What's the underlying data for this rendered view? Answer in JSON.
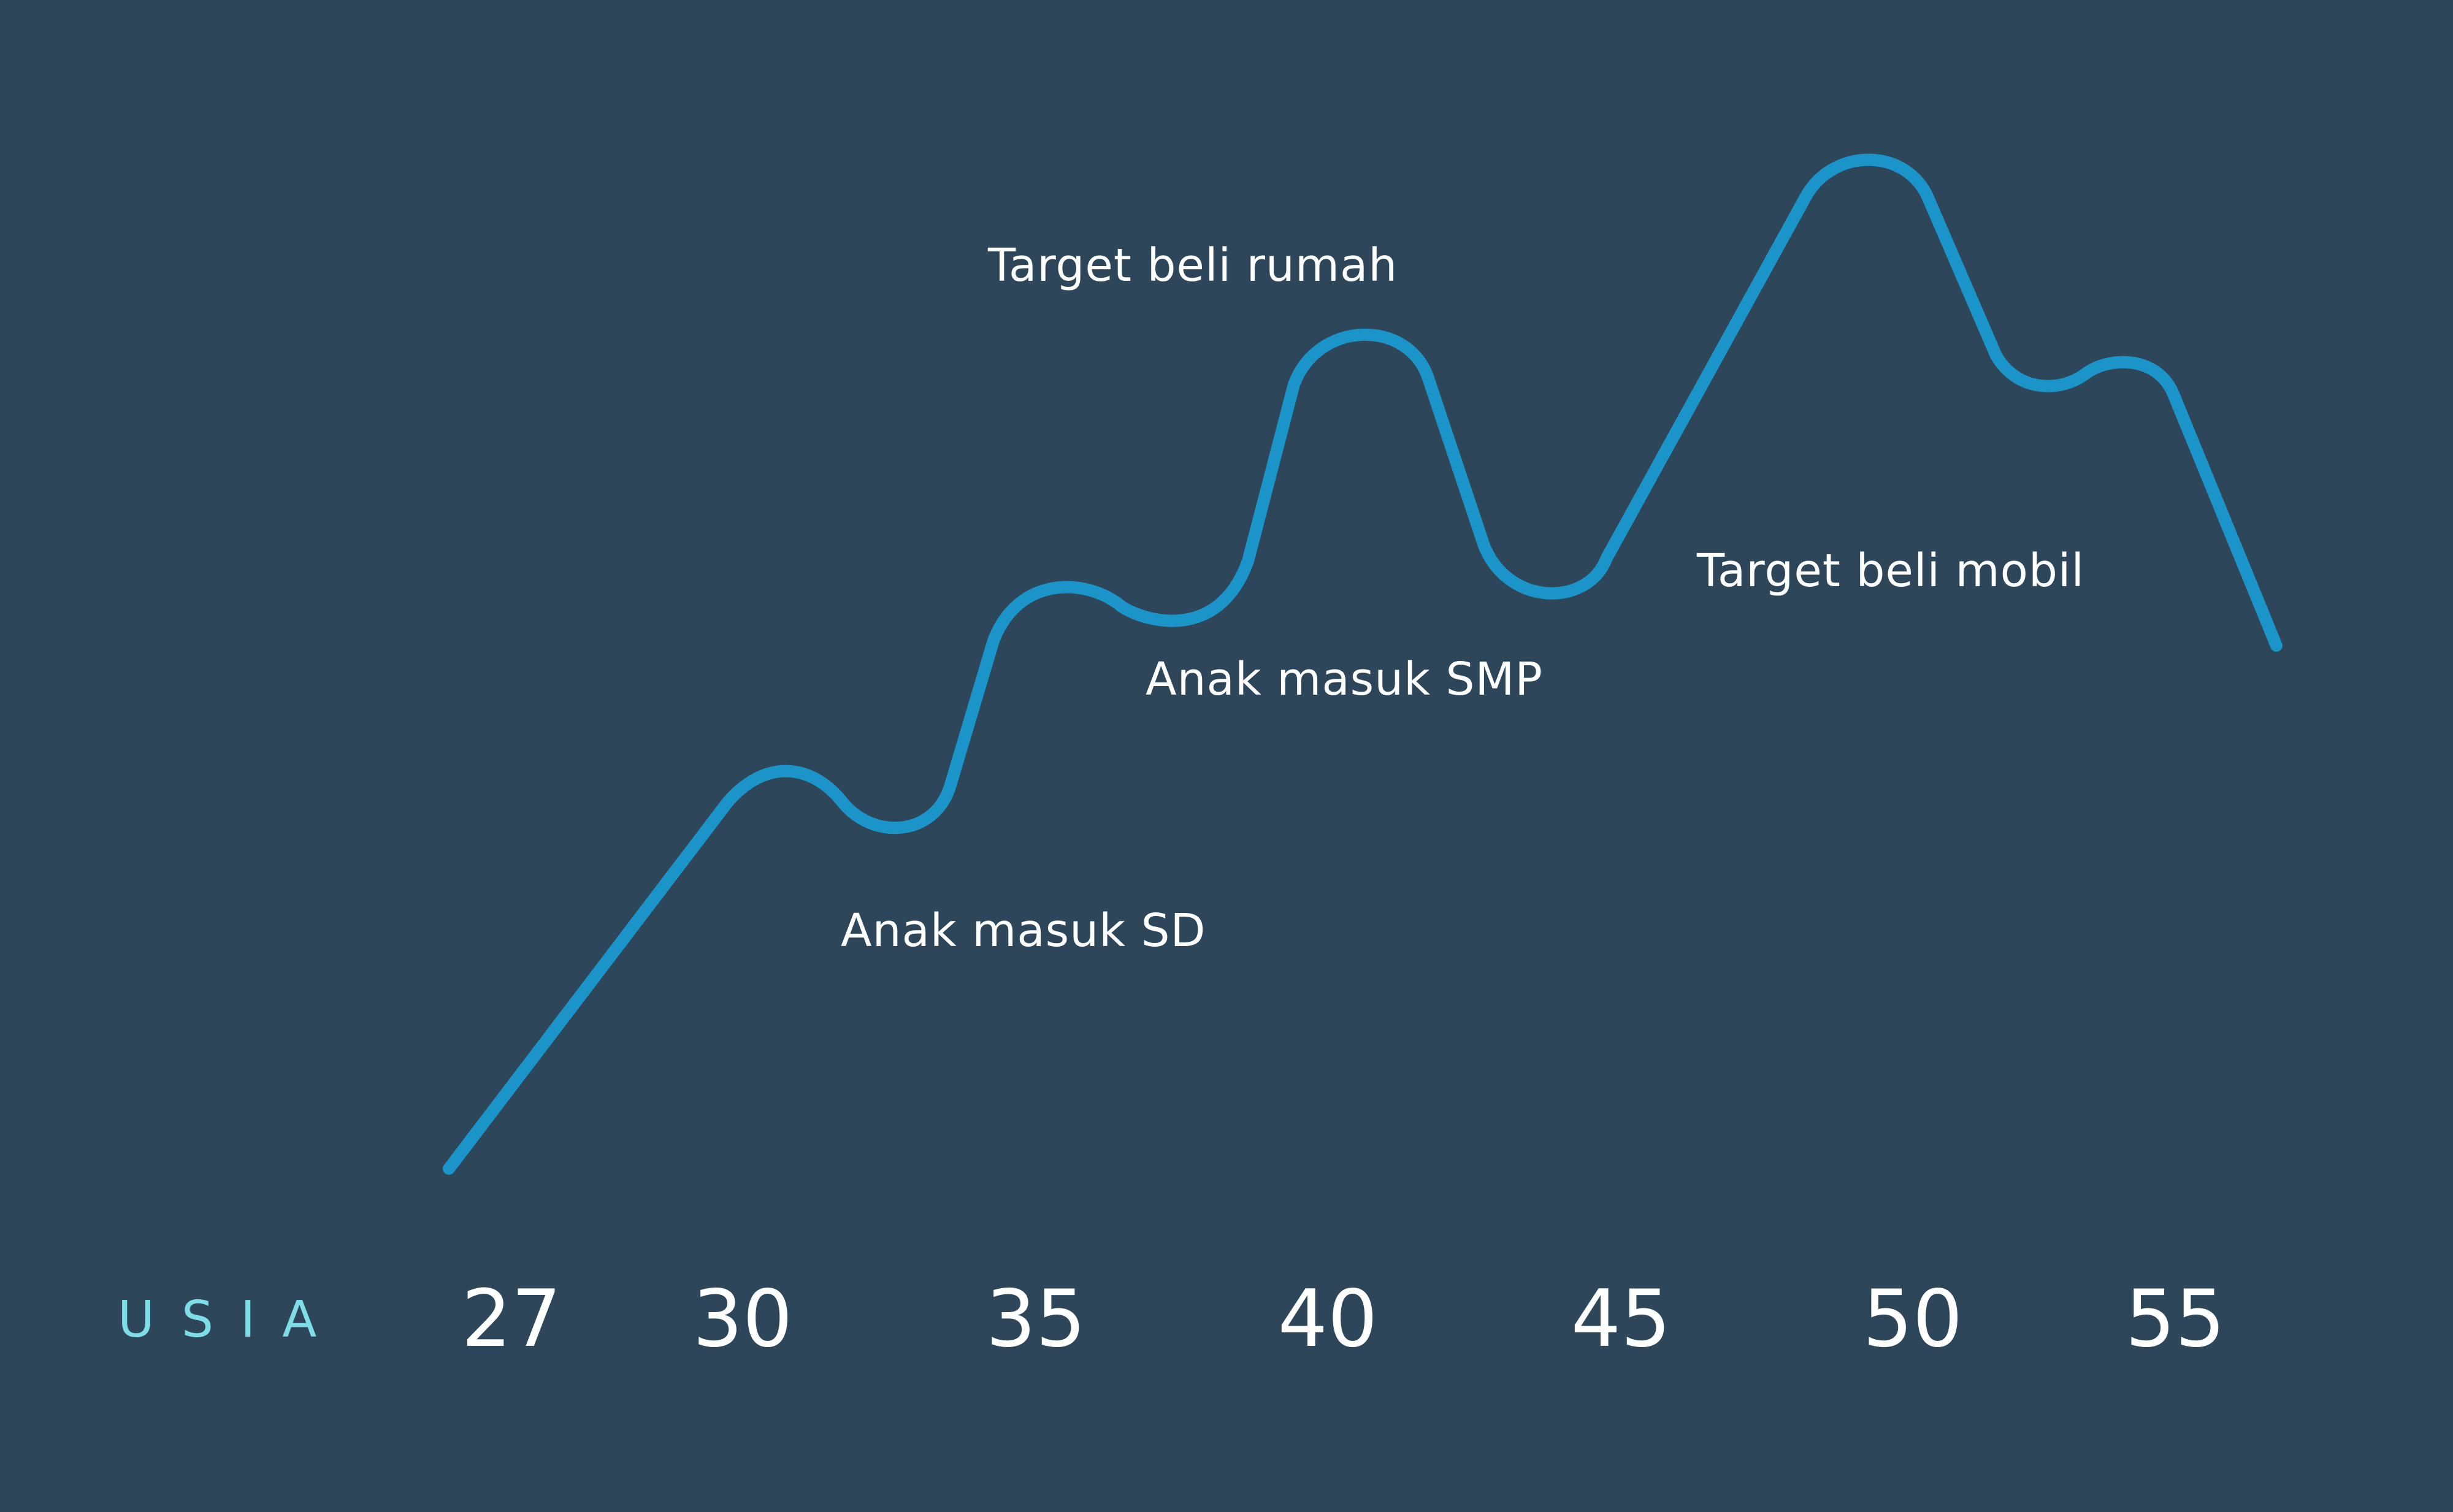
{
  "chart_data": {
    "type": "line",
    "xlabel": "USIA",
    "x_ticks": [
      "27",
      "30",
      "35",
      "40",
      "45",
      "50",
      "55"
    ],
    "annotations": [
      {
        "text": "Anak masuk SD"
      },
      {
        "text": "Anak masuk SMP"
      },
      {
        "text": "Target beli rumah"
      },
      {
        "text": "Target beli mobil"
      }
    ],
    "grid": false,
    "legend": "none"
  },
  "colors": {
    "background": "#2e4659",
    "line": "#1b95c9",
    "axis_label": "#7fdde8",
    "text": "#ffffff"
  }
}
